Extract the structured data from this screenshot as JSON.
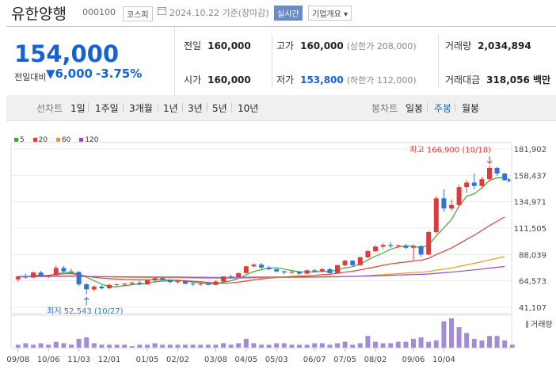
{
  "header": {
    "stock_name": "유한양행",
    "stock_code": "000100",
    "market": "코스피",
    "date": "2024.10.22",
    "basis": "기준(장마감)",
    "realtime_label": "실시간",
    "company_info_label": "기업개요"
  },
  "summary": {
    "current_price": "154,000",
    "change_label": "전일대비",
    "change_value": "6,000",
    "change_percent": "-3.75%",
    "prev_close_label": "전일",
    "prev_close": "160,000",
    "high_label": "고가",
    "high": "160,000",
    "upper_limit": "(상한가 208,000)",
    "volume_label": "거래량",
    "volume": "2,034,894",
    "open_label": "시가",
    "open": "160,000",
    "low_label": "저가",
    "low": "153,800",
    "lower_limit": "(하한가 112,000)",
    "amount_label": "거래대금",
    "amount": "318,056 백만"
  },
  "tabs": {
    "line_chart_label": "선차트",
    "periods": [
      "1일",
      "1주일",
      "3개월",
      "1년",
      "3년",
      "5년",
      "10년"
    ],
    "candle_chart_label": "봉차트",
    "candle_periods": [
      "일봉",
      "주봉",
      "월봉"
    ],
    "selected_candle": "주봉"
  },
  "legend": [
    {
      "label": "5",
      "color": "#3aa935"
    },
    {
      "label": "20",
      "color": "#e0403a"
    },
    {
      "label": "60",
      "color": "#f0961e"
    },
    {
      "label": "120",
      "color": "#8b4fc2"
    }
  ],
  "colors": {
    "up": "#e03a3a",
    "down": "#2e74d8",
    "accent": "#1561d6"
  },
  "chart_data": {
    "type": "candlestick",
    "period": "weekly",
    "y_ticks": [
      "181,902",
      "158,437",
      "134,971",
      "111,505",
      "88,039",
      "64,573",
      "41,107"
    ],
    "ylim": [
      41107,
      181902
    ],
    "x_ticks": [
      "09/08",
      "10/06",
      "11/03",
      "12/01",
      "01/05",
      "02/02",
      "03/08",
      "04/05",
      "05/03",
      "06/07",
      "07/05",
      "08/02",
      "09/06",
      "10/04"
    ],
    "high_annotation": "최고 166,900 (10/18)",
    "low_annotation": "최저 52,543 (10/27)",
    "volume_label": "거래량",
    "candles": [
      {
        "o": 66000,
        "h": 69000,
        "l": 64000,
        "c": 68500
      },
      {
        "o": 68500,
        "h": 71000,
        "l": 66500,
        "c": 67500
      },
      {
        "o": 67500,
        "h": 73000,
        "l": 67000,
        "c": 72000
      },
      {
        "o": 72000,
        "h": 73500,
        "l": 68500,
        "c": 69000
      },
      {
        "o": 69000,
        "h": 70000,
        "l": 67000,
        "c": 69500
      },
      {
        "o": 69500,
        "h": 78000,
        "l": 69000,
        "c": 76000
      },
      {
        "o": 76000,
        "h": 78000,
        "l": 72000,
        "c": 73000
      },
      {
        "o": 73000,
        "h": 75500,
        "l": 72000,
        "c": 72500
      },
      {
        "o": 72500,
        "h": 73000,
        "l": 60000,
        "c": 61500
      },
      {
        "o": 61500,
        "h": 63000,
        "l": 52543,
        "c": 57000
      },
      {
        "o": 57000,
        "h": 60500,
        "l": 55500,
        "c": 59500
      },
      {
        "o": 59500,
        "h": 61000,
        "l": 57000,
        "c": 58000
      },
      {
        "o": 58000,
        "h": 62000,
        "l": 57500,
        "c": 61000
      },
      {
        "o": 61000,
        "h": 62000,
        "l": 59000,
        "c": 61500
      },
      {
        "o": 61500,
        "h": 63000,
        "l": 59500,
        "c": 62000
      },
      {
        "o": 62000,
        "h": 64000,
        "l": 61000,
        "c": 63000
      },
      {
        "o": 63000,
        "h": 64500,
        "l": 60500,
        "c": 61500
      },
      {
        "o": 61500,
        "h": 66000,
        "l": 61000,
        "c": 65000
      },
      {
        "o": 65000,
        "h": 67500,
        "l": 64000,
        "c": 67000
      },
      {
        "o": 67000,
        "h": 68000,
        "l": 64500,
        "c": 65500
      },
      {
        "o": 65500,
        "h": 66000,
        "l": 62000,
        "c": 63500
      },
      {
        "o": 63500,
        "h": 65000,
        "l": 62000,
        "c": 64500
      },
      {
        "o": 64500,
        "h": 65500,
        "l": 61500,
        "c": 62000
      },
      {
        "o": 62000,
        "h": 63000,
        "l": 60000,
        "c": 61500
      },
      {
        "o": 61500,
        "h": 63500,
        "l": 60000,
        "c": 62000
      },
      {
        "o": 62000,
        "h": 64000,
        "l": 60500,
        "c": 61000
      },
      {
        "o": 61000,
        "h": 65000,
        "l": 60500,
        "c": 64000
      },
      {
        "o": 64000,
        "h": 69000,
        "l": 63500,
        "c": 68500
      },
      {
        "o": 68500,
        "h": 70000,
        "l": 66500,
        "c": 68000
      },
      {
        "o": 68000,
        "h": 72000,
        "l": 67500,
        "c": 71500
      },
      {
        "o": 71500,
        "h": 78000,
        "l": 71000,
        "c": 77500
      },
      {
        "o": 77500,
        "h": 80000,
        "l": 76500,
        "c": 79000
      },
      {
        "o": 79000,
        "h": 80500,
        "l": 75000,
        "c": 76500
      },
      {
        "o": 76500,
        "h": 78000,
        "l": 74000,
        "c": 75000
      },
      {
        "o": 75000,
        "h": 75500,
        "l": 72000,
        "c": 73000
      },
      {
        "o": 73000,
        "h": 74000,
        "l": 70500,
        "c": 72000
      },
      {
        "o": 72000,
        "h": 73500,
        "l": 71000,
        "c": 72500
      },
      {
        "o": 72500,
        "h": 73000,
        "l": 70000,
        "c": 71000
      },
      {
        "o": 71000,
        "h": 74500,
        "l": 70500,
        "c": 74000
      },
      {
        "o": 74000,
        "h": 75000,
        "l": 72000,
        "c": 73000
      },
      {
        "o": 73000,
        "h": 76000,
        "l": 72500,
        "c": 75000
      },
      {
        "o": 75000,
        "h": 76000,
        "l": 71000,
        "c": 71500
      },
      {
        "o": 71500,
        "h": 79000,
        "l": 71000,
        "c": 78500
      },
      {
        "o": 78500,
        "h": 83500,
        "l": 77500,
        "c": 82500
      },
      {
        "o": 82500,
        "h": 83000,
        "l": 77500,
        "c": 78500
      },
      {
        "o": 78500,
        "h": 86000,
        "l": 78000,
        "c": 85500
      },
      {
        "o": 85500,
        "h": 92000,
        "l": 85000,
        "c": 91000
      },
      {
        "o": 91000,
        "h": 96000,
        "l": 90000,
        "c": 95000
      },
      {
        "o": 95000,
        "h": 98000,
        "l": 93000,
        "c": 96500
      },
      {
        "o": 96500,
        "h": 99000,
        "l": 94000,
        "c": 95500
      },
      {
        "o": 95500,
        "h": 97000,
        "l": 93500,
        "c": 96000
      },
      {
        "o": 96000,
        "h": 97500,
        "l": 93000,
        "c": 94000
      },
      {
        "o": 94000,
        "h": 97000,
        "l": 83000,
        "c": 95500
      },
      {
        "o": 95500,
        "h": 96000,
        "l": 86000,
        "c": 88000
      },
      {
        "o": 88000,
        "h": 109000,
        "l": 87500,
        "c": 108000
      },
      {
        "o": 108000,
        "h": 140000,
        "l": 107000,
        "c": 138000
      },
      {
        "o": 138000,
        "h": 146000,
        "l": 126000,
        "c": 129000
      },
      {
        "o": 129000,
        "h": 137000,
        "l": 127000,
        "c": 132000
      },
      {
        "o": 132000,
        "h": 150000,
        "l": 130000,
        "c": 148000
      },
      {
        "o": 148000,
        "h": 154000,
        "l": 143000,
        "c": 152000
      },
      {
        "o": 152000,
        "h": 160000,
        "l": 146000,
        "c": 149000
      },
      {
        "o": 149000,
        "h": 157000,
        "l": 147000,
        "c": 155000
      },
      {
        "o": 155000,
        "h": 166900,
        "l": 153000,
        "c": 165000
      },
      {
        "o": 165000,
        "h": 166000,
        "l": 158000,
        "c": 160000
      },
      {
        "o": 160000,
        "h": 160000,
        "l": 153800,
        "c": 154000
      }
    ],
    "volumes": [
      2,
      3,
      2,
      3,
      2,
      4,
      3,
      2,
      6,
      7,
      3,
      2,
      2,
      2,
      2,
      1,
      2,
      2,
      3,
      2,
      2,
      2,
      2,
      2,
      2,
      2,
      2,
      3,
      2,
      3,
      6,
      3,
      2,
      2,
      3,
      3,
      2,
      2,
      2,
      3,
      3,
      2,
      3,
      4,
      2,
      3,
      8,
      4,
      3,
      3,
      4,
      4,
      6,
      7,
      4,
      5,
      18,
      20,
      14,
      10,
      6,
      5,
      8,
      8,
      5,
      2
    ]
  }
}
